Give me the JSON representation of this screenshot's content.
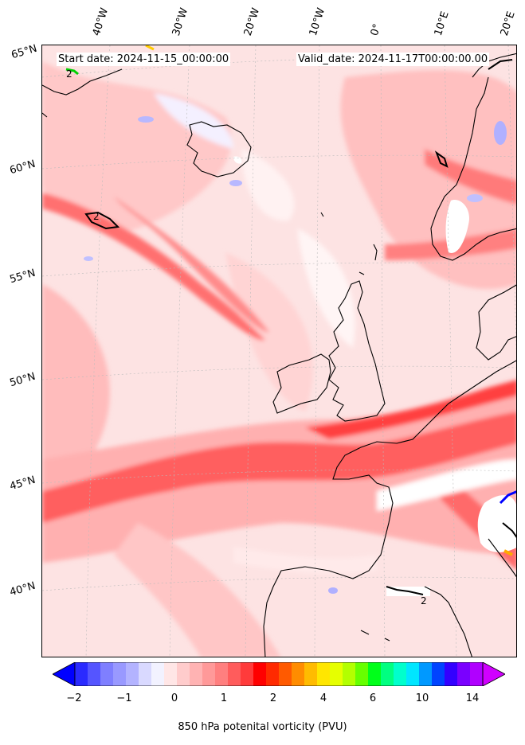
{
  "header": {
    "start_date": "Start date: 2024-11-15_00:00:00",
    "valid_date": "Valid_date: 2024-11-17T00:00:00.00"
  },
  "lon_labels": [
    "40°W",
    "30°W",
    "20°W",
    "10°W",
    "0°",
    "10°E",
    "20°E"
  ],
  "lat_labels": [
    "65°N",
    "60°N",
    "55°N",
    "50°N",
    "45°N",
    "40°N"
  ],
  "contour_labels": [
    "2",
    "2",
    "2"
  ],
  "colorbar": {
    "ticks": [
      "−2",
      "−1",
      "0",
      "1",
      "2",
      "4",
      "6",
      "10",
      "14"
    ],
    "label": "850 hPa potenital vorticity (PVU)",
    "colors": [
      "#0000ff",
      "#2a2aff",
      "#5555ff",
      "#7f7fff",
      "#9999ff",
      "#b3b3ff",
      "#d9d9ff",
      "#f2f2ff",
      "#ffe6e6",
      "#ffcccc",
      "#ffb3b3",
      "#ff9999",
      "#ff7f7f",
      "#ff5c5c",
      "#ff3b3b",
      "#ff0000",
      "#ff2a00",
      "#ff5a00",
      "#ff8c00",
      "#ffbb00",
      "#ffe600",
      "#e6ff00",
      "#b3ff00",
      "#66ff00",
      "#00ff1a",
      "#00ff80",
      "#00ffcc",
      "#00e6ff",
      "#0099ff",
      "#0044ff",
      "#3300ff",
      "#7a00ff",
      "#b000ff",
      "#d000ff"
    ]
  }
}
